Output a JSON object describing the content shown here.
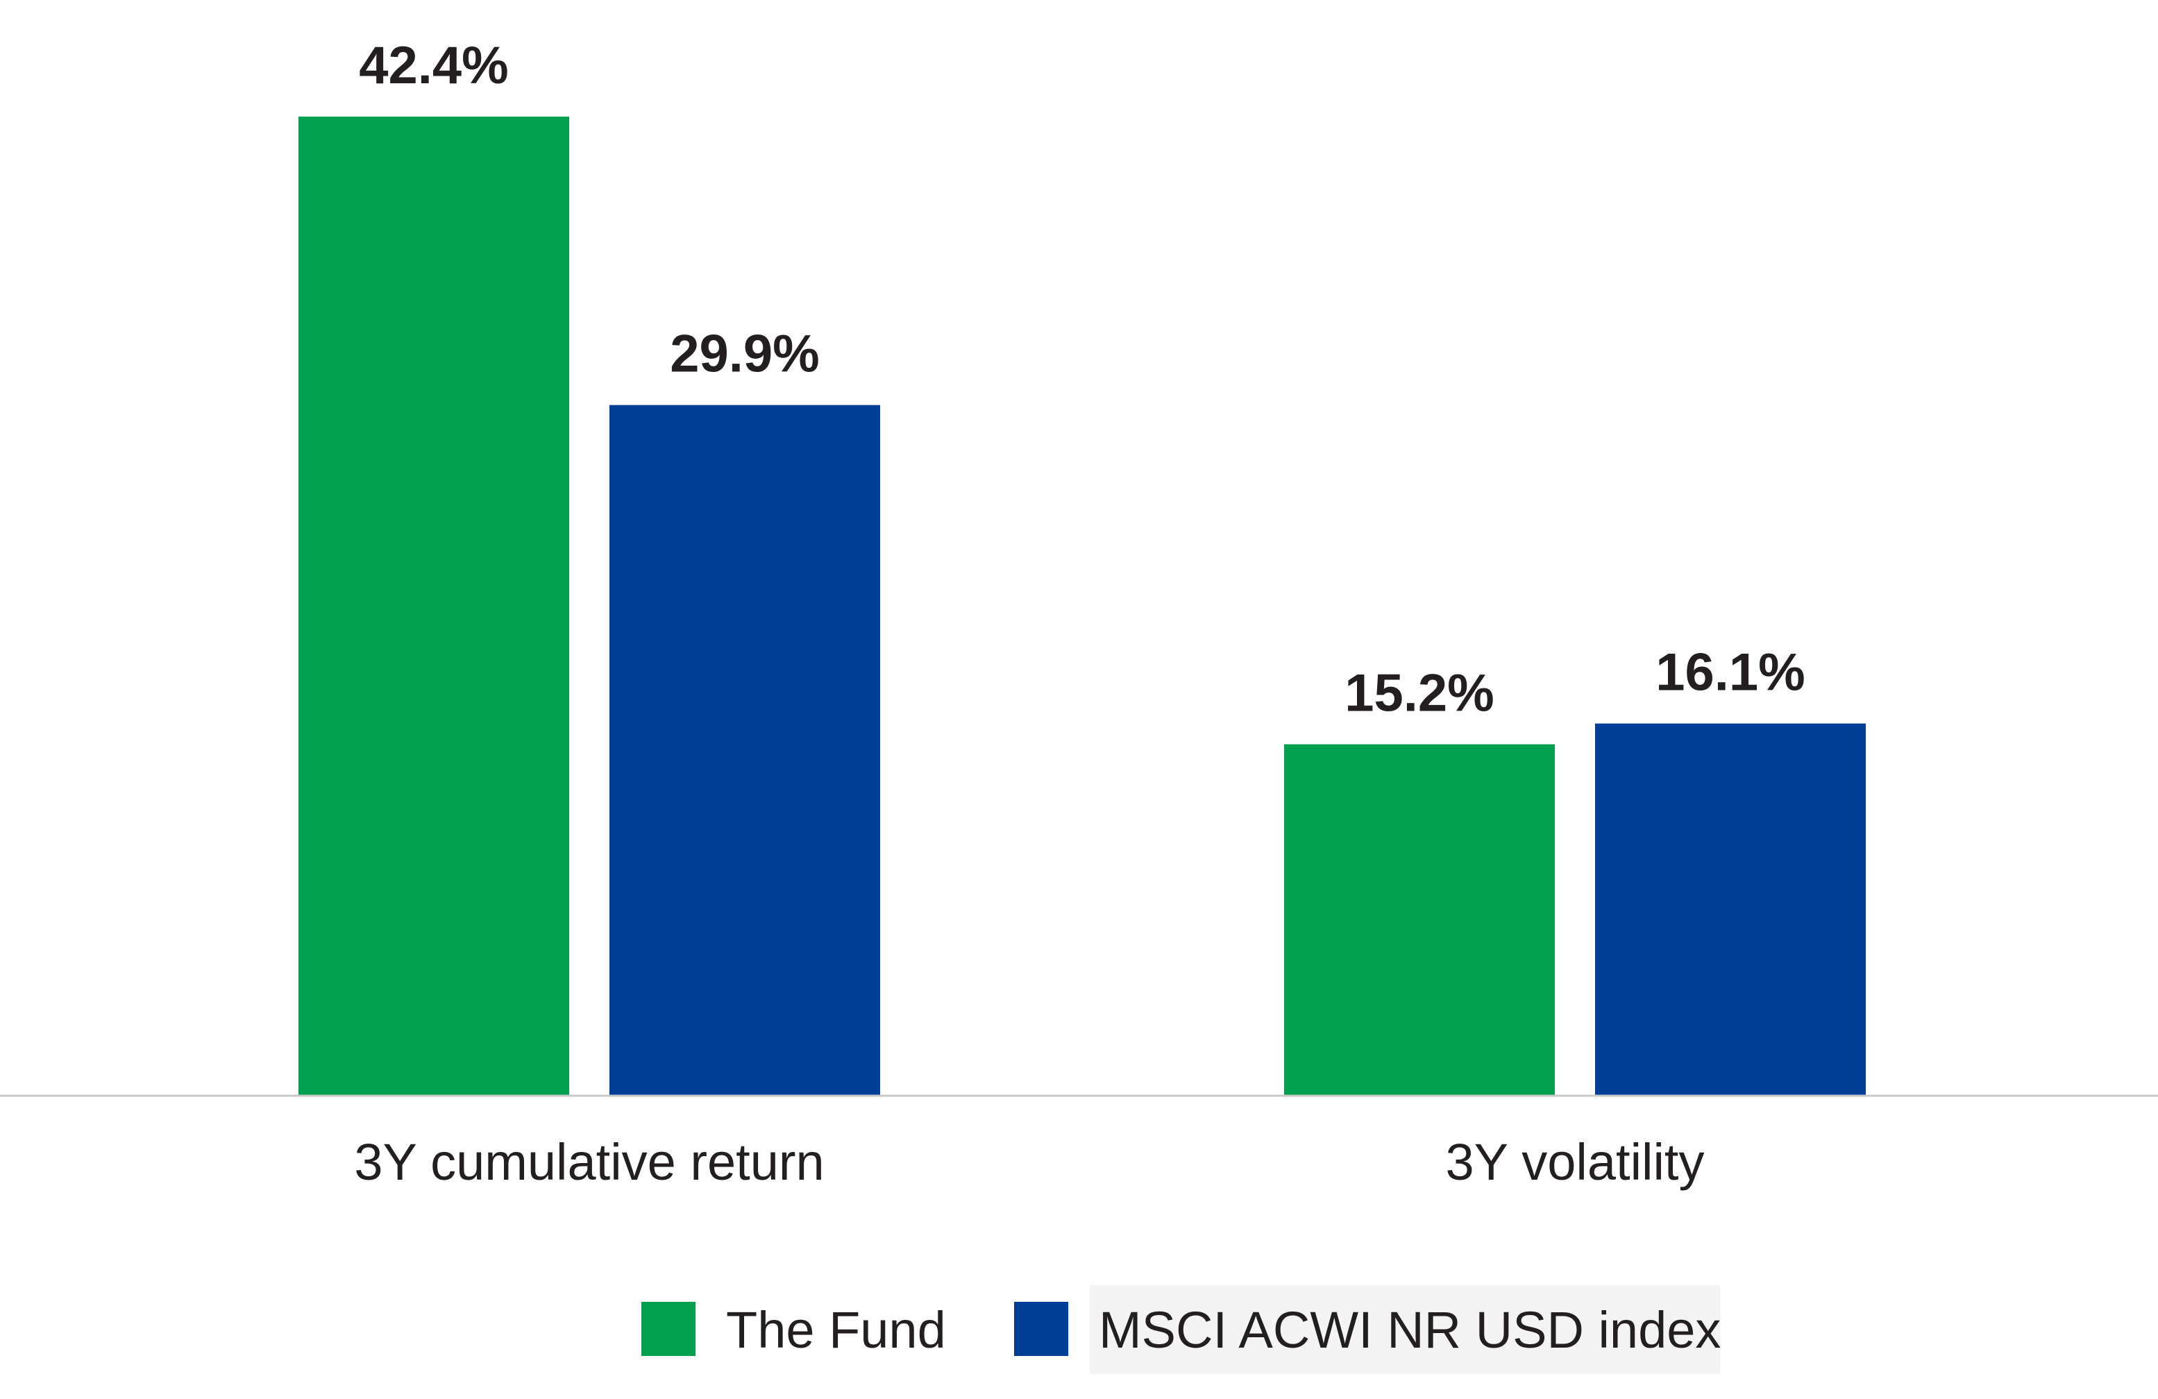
{
  "chart_data": {
    "type": "bar",
    "categories": [
      "3Y cumulative return",
      "3Y volatility"
    ],
    "series": [
      {
        "name": "The Fund",
        "values": [
          42.4,
          15.2
        ],
        "labels": [
          "42.4%",
          "15.2%"
        ],
        "color": "#00a04f"
      },
      {
        "name": "MSCI ACWI NR USD index",
        "values": [
          29.9,
          16.1
        ],
        "labels": [
          "29.9%",
          "16.1%"
        ],
        "color": "#003f98"
      }
    ],
    "title": "",
    "xlabel": "",
    "ylabel": "",
    "ylim": [
      0,
      42.4
    ],
    "grid": false,
    "value_unit": "%",
    "legend_position": "bottom-center",
    "axis_color": "#c8c8c8",
    "legend_highlight_color": "#f4f4f4"
  }
}
